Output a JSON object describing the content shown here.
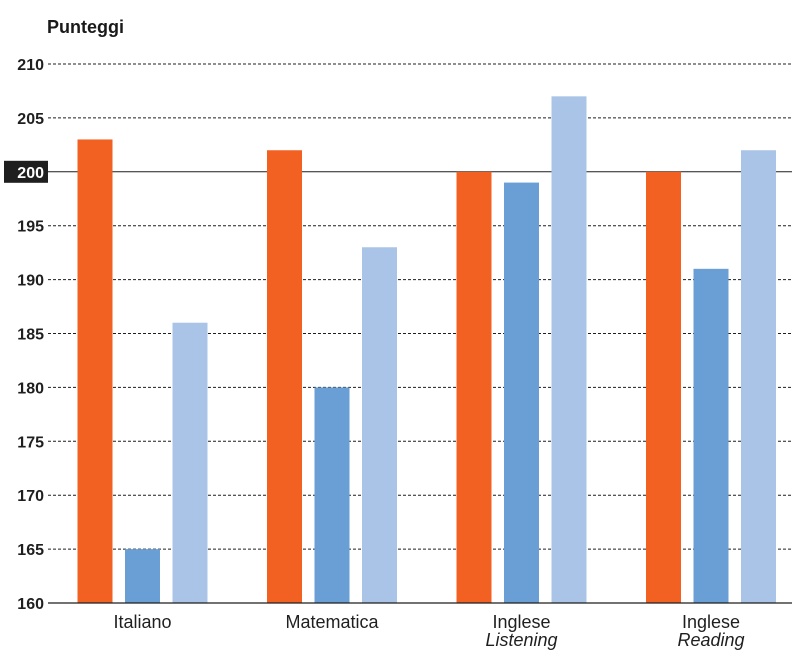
{
  "chart_data": {
    "type": "bar",
    "ylabel": "Punteggi",
    "categories": [
      {
        "label": "Italiano"
      },
      {
        "label": "Matematica"
      },
      {
        "label": "Inglese",
        "sublabel": "Listening"
      },
      {
        "label": "Inglese",
        "sublabel": "Reading"
      }
    ],
    "series": [
      {
        "values": [
          203,
          202,
          200,
          200
        ],
        "color": "#f26122"
      },
      {
        "values": [
          165,
          180,
          199,
          191
        ],
        "color": "#6a9fd6"
      },
      {
        "values": [
          186,
          193,
          207,
          202
        ],
        "color": "#a9c4e6"
      }
    ],
    "ylim": [
      160,
      210
    ],
    "yticks": [
      160,
      165,
      170,
      175,
      180,
      185,
      190,
      195,
      200,
      205,
      210
    ],
    "reference_line": 200,
    "grid": true
  }
}
